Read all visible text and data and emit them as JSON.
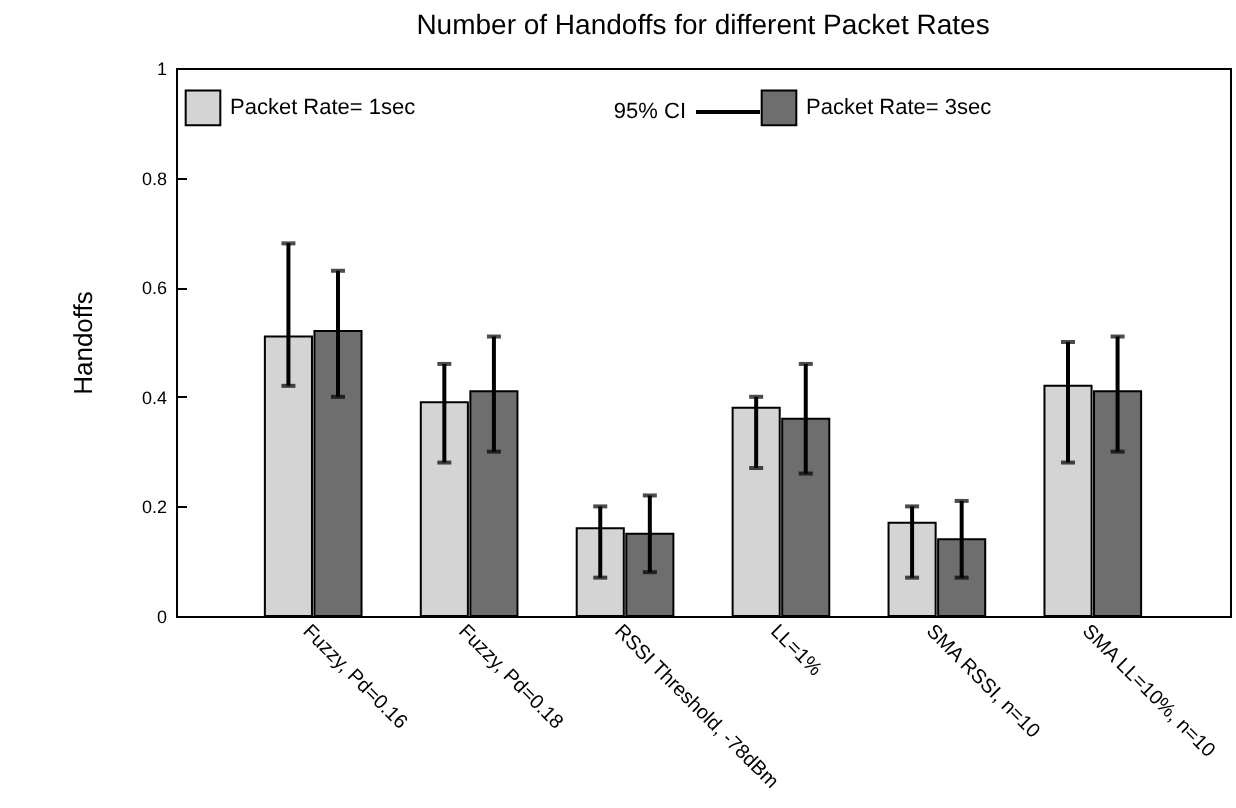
{
  "chart_data": {
    "type": "bar",
    "title": "Number of Handoffs for different Packet Rates",
    "ylabel": "Handoffs",
    "categories": [
      "Fuzzy, Pd=0.16",
      "Fuzzy, Pd=0.18",
      "RSSI Threshold, -78dBm",
      "LL=1%",
      "SMA RSSI, n=10",
      "SMA LL=10%, n=10"
    ],
    "series": [
      {
        "name": "Packet Rate= 1sec",
        "color": "#d4d4d4",
        "values": [
          0.51,
          0.39,
          0.16,
          0.38,
          0.17,
          0.42
        ],
        "errors": [
          [
            0.42,
            0.68
          ],
          [
            0.28,
            0.46
          ],
          [
            0.07,
            0.2
          ],
          [
            0.27,
            0.4
          ],
          [
            0.07,
            0.2
          ],
          [
            0.28,
            0.5
          ]
        ]
      },
      {
        "name": "Packet Rate= 3sec",
        "color": "#6e6e6e",
        "values": [
          0.52,
          0.41,
          0.15,
          0.36,
          0.14,
          0.41
        ],
        "errors": [
          [
            0.4,
            0.63
          ],
          [
            0.3,
            0.51
          ],
          [
            0.08,
            0.22
          ],
          [
            0.26,
            0.46
          ],
          [
            0.07,
            0.21
          ],
          [
            0.3,
            0.51
          ]
        ]
      }
    ],
    "annotations": [
      "95% CI"
    ],
    "ylim": [
      0,
      1
    ],
    "yticks": [
      0,
      0.2,
      0.4,
      0.6,
      0.8,
      1
    ],
    "legend": "top left",
    "grid": false
  }
}
